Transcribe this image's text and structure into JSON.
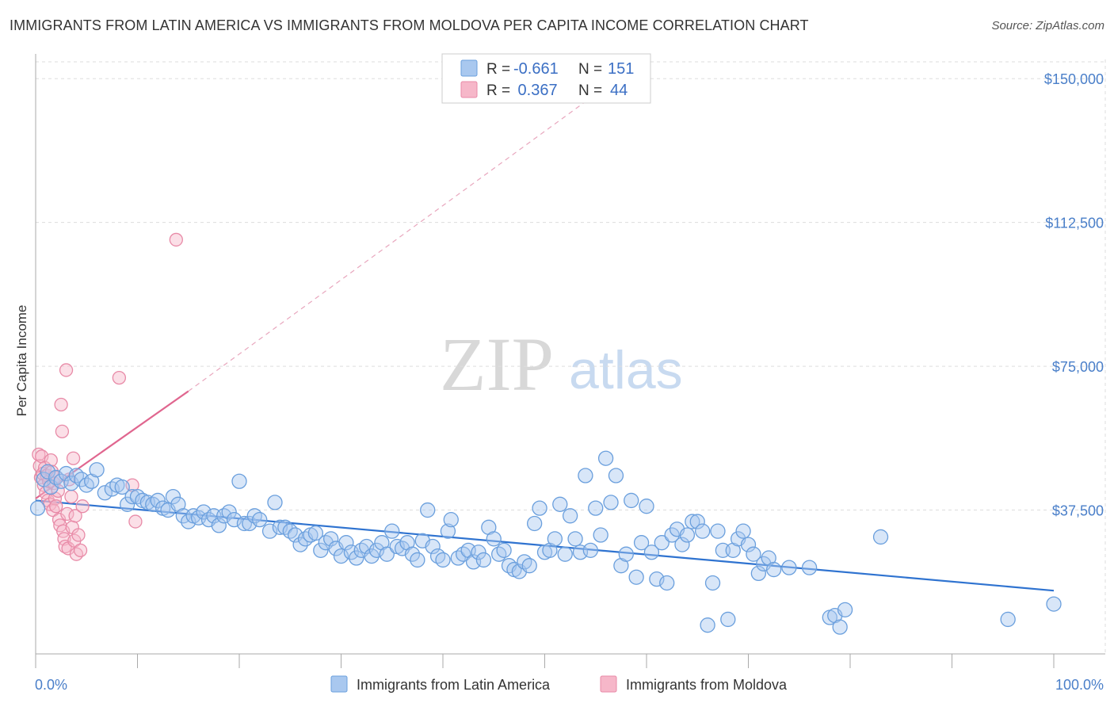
{
  "title": "IMMIGRANTS FROM LATIN AMERICA VS IMMIGRANTS FROM MOLDOVA PER CAPITA INCOME CORRELATION CHART",
  "source": "Source: ZipAtlas.com",
  "watermark": {
    "zip": "ZIP",
    "atlas": "atlas"
  },
  "colors": {
    "blue_fill": "#a9c8ef",
    "blue_stroke": "#6a9fdd",
    "blue_line": "#2f73d0",
    "pink_fill": "#f6b7c9",
    "pink_stroke": "#e88aa7",
    "pink_line": "#e0668f",
    "grid": "#dddddd",
    "tick_text": "#4a7fc9"
  },
  "legend_top": {
    "rows": [
      {
        "r_label": "R =",
        "r_value": "-0.661",
        "n_label": "N =",
        "n_value": "151"
      },
      {
        "r_label": "R =",
        "r_value": " 0.367",
        "n_label": "N =",
        "n_value": "44"
      }
    ]
  },
  "legend_bottom": [
    "Immigrants from Latin America",
    "Immigrants from Moldova"
  ],
  "chart_data": {
    "type": "scatter",
    "xlabel": "",
    "ylabel": "Per Capita Income",
    "xlim": [
      0,
      100
    ],
    "ylim": [
      0,
      155000
    ],
    "x_tick_labels": [
      "0.0%",
      "100.0%"
    ],
    "y_ticks": [
      37500,
      75000,
      112500,
      150000
    ],
    "y_tick_labels": [
      "$37,500",
      "$75,000",
      "$112,500",
      "$150,000"
    ],
    "grid": true,
    "legend_position": "top-center",
    "series": [
      {
        "name": "Immigrants from Latin America",
        "trend": {
          "x0": 0,
          "y0": 40000,
          "x1": 100,
          "y1": 16500
        },
        "points": [
          [
            0.2,
            38000
          ],
          [
            0.8,
            45500
          ],
          [
            1.2,
            47500
          ],
          [
            1.5,
            43500
          ],
          [
            2.0,
            46000
          ],
          [
            2.5,
            45000
          ],
          [
            3.0,
            47000
          ],
          [
            3.5,
            44500
          ],
          [
            4.0,
            46500
          ],
          [
            4.5,
            45500
          ],
          [
            5.0,
            44000
          ],
          [
            5.5,
            45000
          ],
          [
            6.0,
            48000
          ],
          [
            6.8,
            42000
          ],
          [
            7.5,
            43000
          ],
          [
            8.0,
            44000
          ],
          [
            8.5,
            43500
          ],
          [
            9.0,
            39000
          ],
          [
            9.5,
            41000
          ],
          [
            10.0,
            41000
          ],
          [
            10.5,
            40000
          ],
          [
            11.0,
            39500
          ],
          [
            11.5,
            39000
          ],
          [
            12.0,
            40000
          ],
          [
            12.5,
            38000
          ],
          [
            13.0,
            37500
          ],
          [
            13.5,
            41000
          ],
          [
            14.0,
            39000
          ],
          [
            14.5,
            36000
          ],
          [
            15.0,
            34500
          ],
          [
            15.5,
            36000
          ],
          [
            16.0,
            35500
          ],
          [
            16.5,
            37000
          ],
          [
            17.0,
            35000
          ],
          [
            17.5,
            36000
          ],
          [
            18.0,
            33500
          ],
          [
            18.5,
            36000
          ],
          [
            19.0,
            37000
          ],
          [
            19.5,
            35000
          ],
          [
            20.0,
            45000
          ],
          [
            20.5,
            34000
          ],
          [
            21.0,
            34000
          ],
          [
            21.5,
            36000
          ],
          [
            22.0,
            35000
          ],
          [
            23.0,
            32000
          ],
          [
            23.5,
            39500
          ],
          [
            24.0,
            33000
          ],
          [
            24.5,
            33000
          ],
          [
            25.0,
            32000
          ],
          [
            25.5,
            31000
          ],
          [
            26.0,
            28500
          ],
          [
            26.5,
            30000
          ],
          [
            27.0,
            31000
          ],
          [
            27.5,
            31500
          ],
          [
            28.0,
            27000
          ],
          [
            28.5,
            29000
          ],
          [
            29.0,
            30000
          ],
          [
            29.5,
            27500
          ],
          [
            30.0,
            25500
          ],
          [
            30.5,
            29000
          ],
          [
            31.0,
            26500
          ],
          [
            31.5,
            25000
          ],
          [
            32.0,
            27000
          ],
          [
            32.5,
            28000
          ],
          [
            33.0,
            25500
          ],
          [
            33.5,
            27000
          ],
          [
            34.0,
            29000
          ],
          [
            34.5,
            26000
          ],
          [
            35.0,
            32000
          ],
          [
            35.5,
            28000
          ],
          [
            36.0,
            27500
          ],
          [
            36.5,
            29000
          ],
          [
            37.0,
            26000
          ],
          [
            37.5,
            24500
          ],
          [
            38.0,
            29500
          ],
          [
            38.5,
            37500
          ],
          [
            39.0,
            28000
          ],
          [
            39.5,
            25500
          ],
          [
            40.0,
            24500
          ],
          [
            40.5,
            32000
          ],
          [
            40.8,
            35000
          ],
          [
            41.5,
            25000
          ],
          [
            42.0,
            26000
          ],
          [
            42.5,
            27000
          ],
          [
            43.0,
            24000
          ],
          [
            43.5,
            26500
          ],
          [
            44.0,
            24500
          ],
          [
            44.5,
            33000
          ],
          [
            45.0,
            30000
          ],
          [
            45.5,
            26000
          ],
          [
            46.0,
            27000
          ],
          [
            46.5,
            23000
          ],
          [
            47.0,
            22000
          ],
          [
            47.5,
            21500
          ],
          [
            48.0,
            24000
          ],
          [
            48.5,
            23000
          ],
          [
            49.0,
            34000
          ],
          [
            49.5,
            38000
          ],
          [
            50.0,
            26500
          ],
          [
            50.5,
            27000
          ],
          [
            51.0,
            30000
          ],
          [
            51.5,
            39000
          ],
          [
            52.0,
            26000
          ],
          [
            52.5,
            36000
          ],
          [
            53.0,
            30000
          ],
          [
            53.5,
            26500
          ],
          [
            54.0,
            46500
          ],
          [
            54.5,
            27000
          ],
          [
            55.0,
            38000
          ],
          [
            55.5,
            31000
          ],
          [
            56.0,
            51000
          ],
          [
            56.5,
            39500
          ],
          [
            57.0,
            46500
          ],
          [
            57.5,
            23000
          ],
          [
            58.0,
            26000
          ],
          [
            58.5,
            40000
          ],
          [
            59.0,
            20000
          ],
          [
            59.5,
            29000
          ],
          [
            60.0,
            38500
          ],
          [
            60.5,
            26500
          ],
          [
            61.0,
            19500
          ],
          [
            61.5,
            29000
          ],
          [
            62.0,
            18500
          ],
          [
            62.5,
            31000
          ],
          [
            63.0,
            32500
          ],
          [
            63.5,
            28500
          ],
          [
            64.0,
            31000
          ],
          [
            64.5,
            34500
          ],
          [
            65.0,
            34500
          ],
          [
            65.5,
            32000
          ],
          [
            66.0,
            7500
          ],
          [
            66.5,
            18500
          ],
          [
            67.0,
            32000
          ],
          [
            67.5,
            27000
          ],
          [
            68.0,
            9000
          ],
          [
            68.5,
            27000
          ],
          [
            69.0,
            30000
          ],
          [
            69.5,
            32000
          ],
          [
            70.0,
            28500
          ],
          [
            70.5,
            26000
          ],
          [
            71.0,
            21000
          ],
          [
            71.5,
            23500
          ],
          [
            72.0,
            25000
          ],
          [
            72.5,
            22000
          ],
          [
            74.0,
            22500
          ],
          [
            76.0,
            22500
          ],
          [
            78.0,
            9500
          ],
          [
            78.5,
            10000
          ],
          [
            79.0,
            7000
          ],
          [
            79.5,
            11500
          ],
          [
            83.0,
            30500
          ],
          [
            95.5,
            9000
          ],
          [
            100.0,
            13000
          ]
        ]
      },
      {
        "name": "Immigrants from Moldova",
        "trend": {
          "x0": 0,
          "y0": 40500,
          "x1": 15,
          "y1": 68500,
          "dash_x1": 54,
          "dash_y1": 144000
        },
        "points": [
          [
            0.3,
            52000
          ],
          [
            0.4,
            49000
          ],
          [
            0.5,
            46000
          ],
          [
            0.6,
            51500
          ],
          [
            0.7,
            47000
          ],
          [
            0.8,
            44000
          ],
          [
            0.9,
            48500
          ],
          [
            1.0,
            42000
          ],
          [
            1.1,
            46500
          ],
          [
            1.2,
            40000
          ],
          [
            1.3,
            45000
          ],
          [
            1.4,
            39000
          ],
          [
            1.5,
            50500
          ],
          [
            1.6,
            47500
          ],
          [
            1.7,
            37500
          ],
          [
            1.8,
            44500
          ],
          [
            1.9,
            40500
          ],
          [
            2.0,
            38500
          ],
          [
            2.1,
            46000
          ],
          [
            2.2,
            42500
          ],
          [
            2.3,
            35000
          ],
          [
            2.4,
            33500
          ],
          [
            2.5,
            65000
          ],
          [
            2.6,
            58000
          ],
          [
            2.7,
            32000
          ],
          [
            2.8,
            30000
          ],
          [
            2.9,
            28000
          ],
          [
            3.0,
            74000
          ],
          [
            3.1,
            36500
          ],
          [
            3.2,
            27500
          ],
          [
            3.3,
            45500
          ],
          [
            3.5,
            41000
          ],
          [
            3.6,
            33000
          ],
          [
            3.7,
            51000
          ],
          [
            3.8,
            29500
          ],
          [
            3.9,
            36000
          ],
          [
            4.0,
            26000
          ],
          [
            4.2,
            31000
          ],
          [
            4.4,
            27000
          ],
          [
            4.6,
            38500
          ],
          [
            9.5,
            44000
          ],
          [
            9.8,
            34500
          ],
          [
            8.2,
            72000
          ],
          [
            13.8,
            108000
          ]
        ]
      }
    ]
  }
}
